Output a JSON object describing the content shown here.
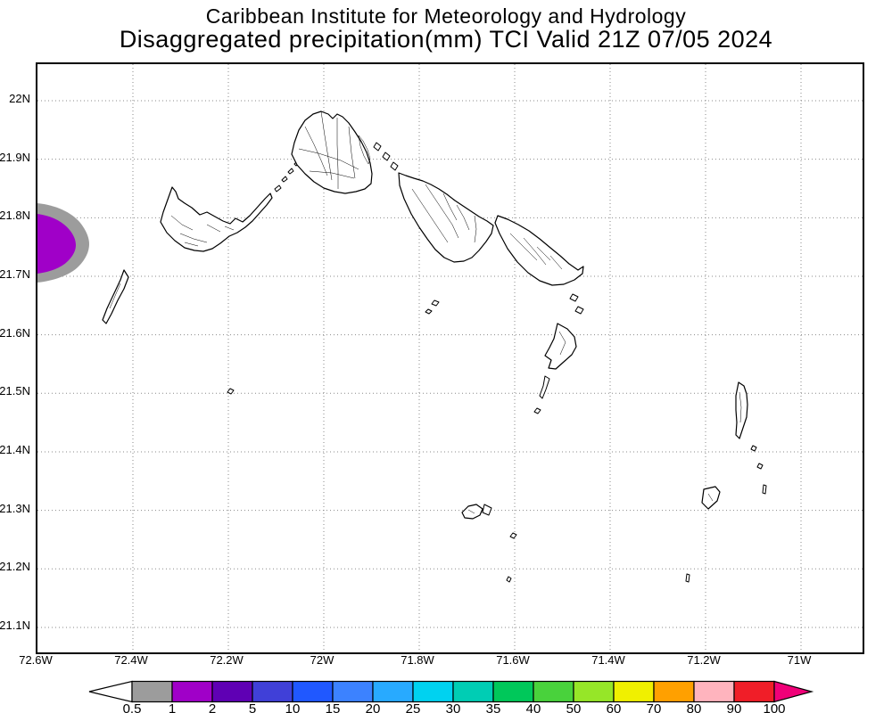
{
  "header": {
    "line1": "Caribbean Institute for Meteorology and Hydrology",
    "line2": "Disaggregated precipitation(mm) TCI Valid 21Z 07/05 2024"
  },
  "map": {
    "region": "Turks and Caicos Islands",
    "lat_labels": [
      "22N",
      "21.9N",
      "21.8N",
      "21.7N",
      "21.6N",
      "21.5N",
      "21.4N",
      "21.3N",
      "21.2N",
      "21.1N"
    ],
    "lon_labels": [
      "72.6W",
      "72.4W",
      "72.2W",
      "72W",
      "71.8W",
      "71.6W",
      "71.4W",
      "71.2W",
      "71W"
    ],
    "precipitation_areas": [
      {
        "value_range_mm": "0.5-1",
        "color": "#9c9c9c",
        "location": "west map edge near 21.75N 72.6W"
      },
      {
        "value_range_mm": "1-2",
        "color": "#a000c8",
        "location": "west map edge near 21.75N 72.6W"
      }
    ]
  },
  "colorbar": {
    "tick_labels": [
      "0.5",
      "1",
      "2",
      "5",
      "10",
      "15",
      "20",
      "25",
      "30",
      "35",
      "40",
      "50",
      "60",
      "70",
      "80",
      "90",
      "100"
    ],
    "segment_colors": [
      "#9c9c9c",
      "#a000c8",
      "#5f00b4",
      "#4040d8",
      "#2058ff",
      "#3c82ff",
      "#28aaff",
      "#00d2f0",
      "#00cdb4",
      "#00c85a",
      "#49d23c",
      "#96e628",
      "#f0f000",
      "#ffa000",
      "#ffb4be",
      "#f01e28"
    ],
    "below_min_color": "#ffffff",
    "above_max_color": "#f00078"
  }
}
